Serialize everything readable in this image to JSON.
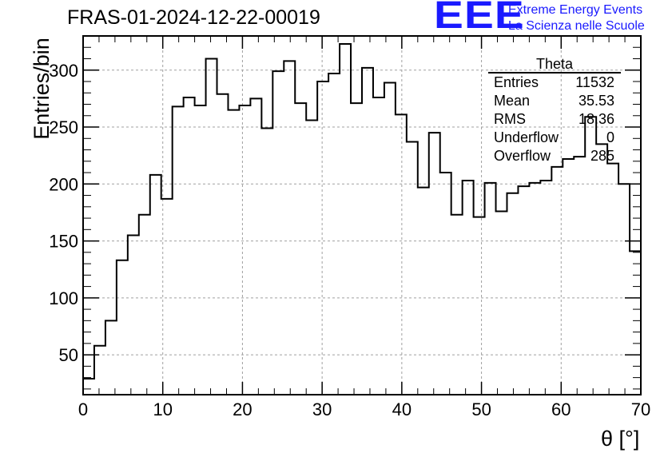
{
  "title": "FRAS-01-2024-12-22-00019",
  "logo": {
    "mark": "EEE",
    "line1": "Extreme Energy Events",
    "line2": "La Scienza nelle Scuole",
    "color": "#1a1aff"
  },
  "stats": {
    "name": "Theta",
    "rows": [
      {
        "label": "Entries",
        "value": "11532"
      },
      {
        "label": "Mean",
        "value": "35.53"
      },
      {
        "label": "RMS",
        "value": "18.36"
      },
      {
        "label": "Underflow",
        "value": "0"
      },
      {
        "label": "Overflow",
        "value": "285"
      }
    ]
  },
  "chart_data": {
    "type": "histogram",
    "xlabel": "θ [°]",
    "ylabel": "Entries/bin",
    "xlim": [
      0,
      70
    ],
    "ylim": [
      15,
      330
    ],
    "xticks": [
      0,
      10,
      20,
      30,
      40,
      50,
      60,
      70
    ],
    "yticks": [
      50,
      100,
      150,
      200,
      250,
      300
    ],
    "grid": true,
    "bin_width": 1.4,
    "values": [
      29,
      58,
      80,
      133,
      155,
      173,
      208,
      187,
      268,
      276,
      269,
      310,
      279,
      265,
      269,
      275,
      249,
      299,
      308,
      271,
      256,
      290,
      297,
      323,
      271,
      302,
      276,
      289,
      261,
      237,
      197,
      245,
      210,
      173,
      203,
      171,
      201,
      176,
      192,
      198,
      201,
      203,
      215,
      222,
      224,
      259,
      235,
      218,
      200,
      141
    ]
  }
}
